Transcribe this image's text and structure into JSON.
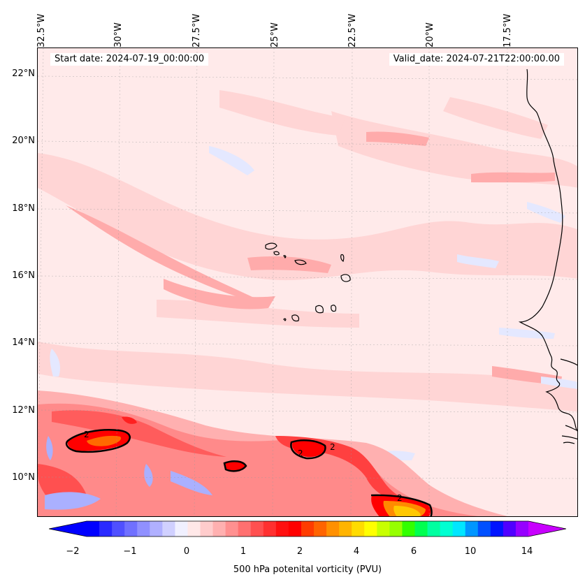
{
  "header": {
    "start_date": "Start date: 2024-07-19_00:00:00",
    "valid_date": "Valid_date: 2024-07-21T22:00:00.00"
  },
  "map": {
    "lon_labels": [
      "32.5°W",
      "30°W",
      "27.5°W",
      "25°W",
      "22.5°W",
      "20°W",
      "17.5°W"
    ],
    "lat_labels": [
      "22°N",
      "20°N",
      "18°N",
      "16°N",
      "14°N",
      "12°N",
      "10°N"
    ],
    "contour_label": "2",
    "colors": {
      "background": "#ffeaea",
      "light_pink": "#ffd0d0",
      "pink": "#ffb0b0",
      "salmon": "#ff8080",
      "red": "#ff2a2a",
      "dark_red": "#ff0000",
      "orange": "#ff7000",
      "yellow": "#ffd000",
      "light_blue": "#e6e9ff",
      "blue": "#a0a8ff",
      "coastline": "#000000"
    }
  },
  "colorbar": {
    "ticks": [
      "−2",
      "−1",
      "0",
      "1",
      "2",
      "4",
      "6",
      "10",
      "14"
    ],
    "label": "500 hPa potenital vorticity (PVU)",
    "colors": [
      "#0000ff",
      "#2a2aff",
      "#5050ff",
      "#7070ff",
      "#9090ff",
      "#b0b0ff",
      "#d0d0ff",
      "#f0f0ff",
      "#ffe8e8",
      "#ffcccc",
      "#ffb0b0",
      "#ff9090",
      "#ff7070",
      "#ff5050",
      "#ff3030",
      "#ff1010",
      "#ff0000",
      "#ff3c00",
      "#ff6400",
      "#ff9000",
      "#ffb400",
      "#ffdc00",
      "#ffff00",
      "#c8ff00",
      "#96ff00",
      "#32ff00",
      "#00ff50",
      "#00ffa0",
      "#00ffd2",
      "#00e6ff",
      "#0096ff",
      "#0050ff",
      "#0014ff",
      "#5000ff",
      "#9600ff"
    ],
    "min_arrow_color": "#0000ff",
    "max_arrow_color": "#c800ff"
  }
}
